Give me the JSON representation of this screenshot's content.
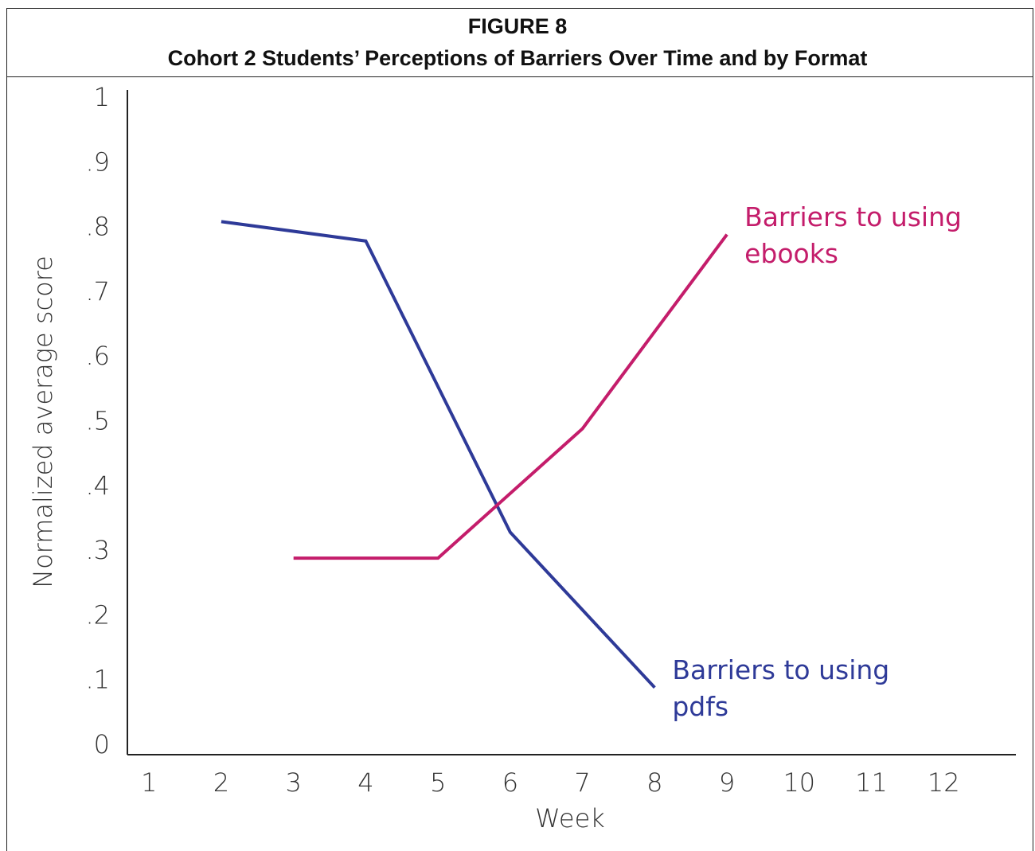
{
  "chart_data": {
    "type": "line",
    "title": "FIGURE 8",
    "subtitle": "Cohort 2 Students’ Perceptions of Barriers Over Time and by Format",
    "x_label": "Week",
    "y_label": "Normalized average score",
    "xlim": [
      0.7,
      13
    ],
    "xticks": [
      1,
      2,
      3,
      4,
      5,
      6,
      7,
      8,
      9,
      10,
      11,
      12
    ],
    "ylim": [
      0,
      1
    ],
    "yticks": [
      0,
      {
        "value": 0.1,
        "label": ".1"
      },
      {
        "value": 0.2,
        "label": ".2"
      },
      {
        "value": 0.3,
        "label": ".3"
      },
      {
        "value": 0.4,
        "label": ".4"
      },
      {
        "value": 0.5,
        "label": ".5"
      },
      {
        "value": 0.6,
        "label": ".6"
      },
      {
        "value": 0.7,
        "label": ".7"
      },
      {
        "value": 0.8,
        "label": ".8"
      },
      {
        "value": 0.9,
        "label": ".9"
      },
      1
    ],
    "series": [
      {
        "name": "Barriers to using pdfs",
        "color": "#2e3a98",
        "x": [
          2,
          4,
          6,
          8
        ],
        "values": [
          0.82,
          0.79,
          0.34,
          0.1
        ]
      },
      {
        "name": "Barriers to using ebooks",
        "color": "#c41d6b",
        "x": [
          3,
          5,
          7,
          9
        ],
        "values": [
          0.3,
          0.3,
          0.5,
          0.8
        ]
      }
    ]
  }
}
